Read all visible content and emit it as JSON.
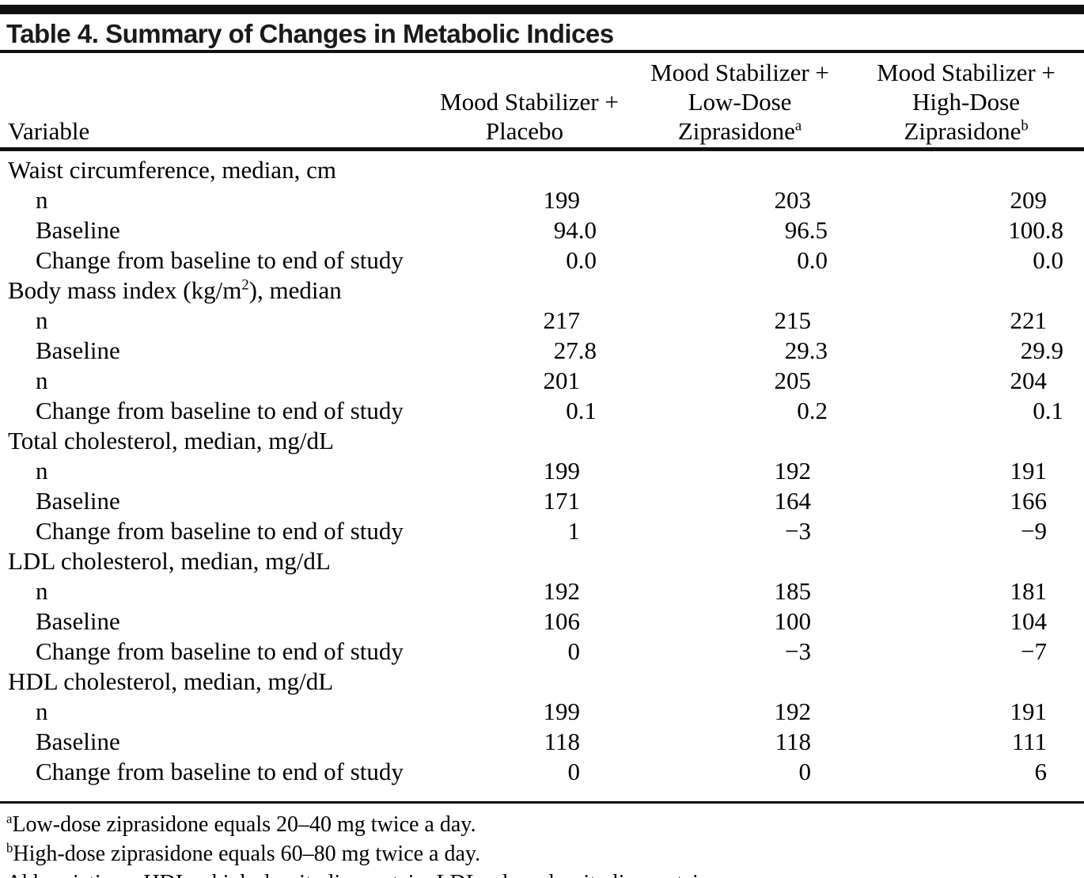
{
  "title": "Table 4. Summary of Changes in Metabolic Indices",
  "table": {
    "variable_header": "Variable",
    "columns": [
      {
        "id": "placebo",
        "lines": [
          [
            {
              "t": "Mood Stabilizer +"
            }
          ],
          [
            {
              "t": "Placebo"
            }
          ]
        ]
      },
      {
        "id": "low-dose-ziprasidone",
        "lines": [
          [
            {
              "t": "Mood Stabilizer +"
            }
          ],
          [
            {
              "t": "Low-Dose"
            }
          ],
          [
            {
              "t": "Ziprasidone"
            },
            {
              "t": "a",
              "sup": true
            }
          ]
        ]
      },
      {
        "id": "high-dose-ziprasidone",
        "lines": [
          [
            {
              "t": "Mood Stabilizer +"
            }
          ],
          [
            {
              "t": "High-Dose"
            }
          ],
          [
            {
              "t": "Ziprasidone"
            },
            {
              "t": "b",
              "sup": true
            }
          ]
        ]
      }
    ],
    "sections": [
      {
        "label": [
          {
            "t": "Waist circumference, median, cm"
          }
        ],
        "rows": [
          {
            "label": "n",
            "values": [
              "199",
              "203",
              "209"
            ]
          },
          {
            "label": "Baseline",
            "values": [
              "94.0",
              "96.5",
              "100.8"
            ]
          },
          {
            "label": "Change from baseline to end of study",
            "values": [
              "0.0",
              "0.0",
              "0.0"
            ]
          }
        ]
      },
      {
        "label": [
          {
            "t": "Body mass index (kg/m"
          },
          {
            "t": "2",
            "sup": true
          },
          {
            "t": "), median"
          }
        ],
        "rows": [
          {
            "label": "n",
            "values": [
              "217",
              "215",
              "221"
            ]
          },
          {
            "label": "Baseline",
            "values": [
              "27.8",
              "29.3",
              "29.9"
            ]
          },
          {
            "label": "n",
            "values": [
              "201",
              "205",
              "204"
            ]
          },
          {
            "label": "Change from baseline to end of study",
            "values": [
              "0.1",
              "0.2",
              "0.1"
            ]
          }
        ]
      },
      {
        "label": [
          {
            "t": "Total cholesterol, median, mg/dL"
          }
        ],
        "rows": [
          {
            "label": "n",
            "values": [
              "199",
              "192",
              "191"
            ]
          },
          {
            "label": "Baseline",
            "values": [
              "171",
              "164",
              "166"
            ]
          },
          {
            "label": "Change from baseline to end of study",
            "values": [
              "1",
              "−3",
              "−9"
            ]
          }
        ]
      },
      {
        "label": [
          {
            "t": "LDL cholesterol, median, mg/dL"
          }
        ],
        "rows": [
          {
            "label": "n",
            "values": [
              "192",
              "185",
              "181"
            ]
          },
          {
            "label": "Baseline",
            "values": [
              "106",
              "100",
              "104"
            ]
          },
          {
            "label": "Change from baseline to end of study",
            "values": [
              "0",
              "−3",
              "−7"
            ]
          }
        ]
      },
      {
        "label": [
          {
            "t": "HDL cholesterol, median, mg/dL"
          }
        ],
        "rows": [
          {
            "label": "n",
            "values": [
              "199",
              "192",
              "191"
            ]
          },
          {
            "label": "Baseline",
            "values": [
              "118",
              "118",
              "111"
            ]
          },
          {
            "label": "Change from baseline to end of study",
            "values": [
              "0",
              "0",
              "6"
            ]
          }
        ]
      }
    ]
  },
  "footnotes": [
    {
      "marker": "a",
      "text": "Low-dose ziprasidone equals 20–40 mg twice a day."
    },
    {
      "marker": "b",
      "text": "High-dose ziprasidone equals 60–80 mg twice a day."
    },
    {
      "marker": "",
      "text": "Abbreviations: HDL = high-density lipoprotein, LDL = low-density lipoprotein."
    }
  ],
  "colors": {
    "text": "#111111",
    "rule": "#111111",
    "background": "#ffffff"
  }
}
